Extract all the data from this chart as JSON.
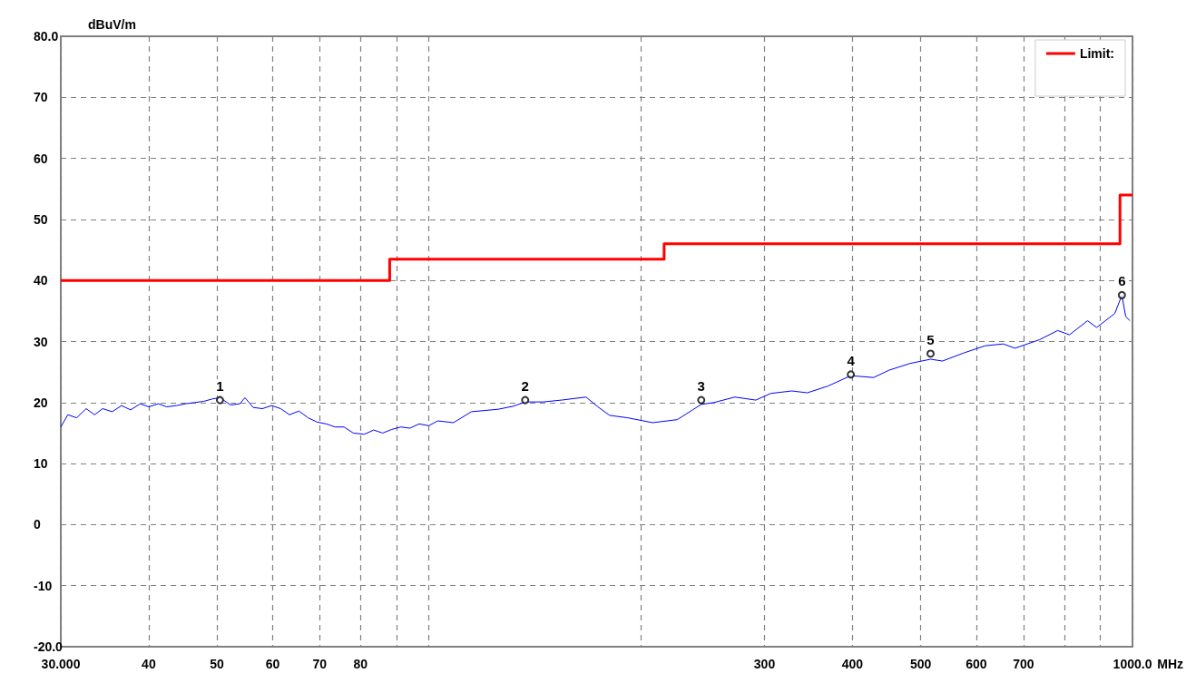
{
  "chart_data": {
    "type": "line",
    "xlabel": "MHz",
    "ylabel": "dBuV/m",
    "log": "x",
    "grid": true,
    "legend": "top right",
    "xlim": [
      30,
      1000
    ],
    "ylim": [
      -20,
      80
    ],
    "xticks": [
      {
        "value": 30,
        "label": "30.000"
      },
      40,
      50,
      60,
      70,
      80,
      {
        "value": 90,
        "label": null
      },
      {
        "value": 100,
        "label": null
      },
      {
        "value": 200,
        "label": null
      },
      300,
      400,
      500,
      600,
      700,
      {
        "value": 800,
        "label": null
      },
      {
        "value": 900,
        "label": null
      },
      {
        "value": 1000,
        "label": "1000.0"
      }
    ],
    "yticks": [
      {
        "value": -20,
        "label": "-20.0"
      },
      -10,
      0,
      10,
      20,
      30,
      40,
      50,
      60,
      70,
      {
        "value": 80,
        "label": "80.0"
      }
    ],
    "series": [
      {
        "color": "#0000ff",
        "x": [
          30.0,
          30.7,
          31.6,
          32.6,
          33.5,
          34.4,
          35.5,
          36.6,
          37.7,
          38.9,
          40.0,
          41.3,
          42.4,
          43.8,
          45.1,
          46.5,
          47.9,
          49.3,
          50.5,
          52.3,
          53.9,
          54.8,
          56.3,
          58.0,
          59.8,
          61.6,
          63.4,
          65.4,
          67.4,
          69.4,
          71.5,
          73.6,
          75.8,
          78.1,
          81.0,
          83.5,
          86.0,
          88.6,
          91.3,
          94.0,
          96.9,
          100.0,
          103.0,
          108.4,
          115.0,
          125.5,
          131.9,
          137.1,
          145.4,
          154.3,
          167.3,
          173.9,
          180.7,
          191.8,
          208.0,
          225.5,
          236.4,
          243.9,
          254.3,
          272.2,
          291.5,
          306.3,
          328.1,
          345.1,
          369.2,
          397.9,
          428.7,
          450.9,
          482.8,
          516.5,
          537.0,
          575.0,
          617.4,
          655.1,
          680.9,
          738.0,
          782.9,
          813.7,
          863.4,
          889.3,
          944.0,
          966.0,
          978.0,
          992.0
        ],
        "values": [
          16.0,
          18.0,
          17.5,
          19.0,
          18.0,
          19.0,
          18.5,
          19.5,
          18.8,
          19.8,
          19.3,
          19.8,
          19.3,
          19.5,
          19.8,
          20.0,
          20.2,
          20.6,
          20.8,
          19.6,
          19.8,
          20.8,
          19.2,
          19.0,
          19.5,
          19.0,
          18.0,
          18.6,
          17.5,
          16.8,
          16.5,
          16.0,
          16.0,
          15.0,
          14.8,
          15.5,
          15.0,
          15.6,
          16.0,
          15.8,
          16.5,
          16.2,
          17.0,
          16.7,
          18.5,
          18.9,
          19.4,
          20.1,
          20.1,
          20.4,
          20.9,
          19.3,
          17.9,
          17.5,
          16.7,
          17.2,
          18.7,
          19.7,
          20.0,
          20.9,
          20.4,
          21.5,
          21.9,
          21.6,
          22.7,
          24.4,
          24.1,
          25.3,
          26.4,
          27.1,
          26.8,
          28.1,
          29.3,
          29.6,
          28.9,
          30.3,
          31.8,
          31.1,
          33.4,
          32.3,
          34.6,
          37.6,
          34.1,
          33.4
        ]
      },
      {
        "type": "step",
        "name": "Limit:",
        "color": "#ff0000",
        "x": [
          30,
          88,
          216,
          960,
          1000
        ],
        "values": [
          40,
          43.5,
          46,
          54,
          54
        ]
      },
      {
        "type": "scatter",
        "color": "#000000",
        "marker": "circle",
        "x": [
          50.5,
          137.1,
          243.9,
          397.9,
          516.5,
          966.0
        ],
        "values": [
          20.4,
          20.4,
          20.4,
          24.6,
          28.0,
          37.6
        ]
      }
    ],
    "annotations": [
      {
        "text": "1",
        "x": 50.5,
        "y": 20.4
      },
      {
        "text": "2",
        "x": 137.1,
        "y": 20.4
      },
      {
        "text": "3",
        "x": 243.9,
        "y": 20.4
      },
      {
        "text": "4",
        "x": 397.9,
        "y": 24.6
      },
      {
        "text": "5",
        "x": 516.5,
        "y": 28.0
      },
      {
        "text": "6",
        "x": 966.0,
        "y": 37.6
      }
    ]
  }
}
